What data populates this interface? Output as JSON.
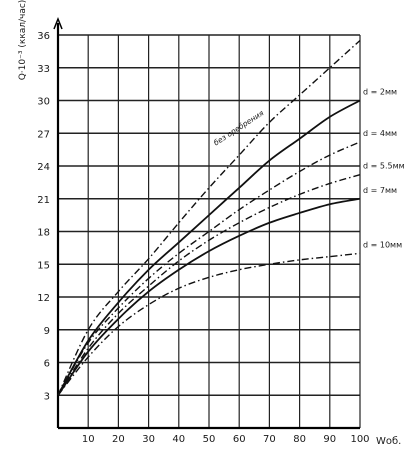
{
  "chart_data": {
    "type": "line",
    "title": "",
    "ylabel": "Q·10⁻³ (ккал/час)",
    "xlabel": "Wоб.",
    "xlim": [
      0,
      100
    ],
    "ylim": [
      0,
      36
    ],
    "x_ticks": [
      10,
      20,
      30,
      40,
      50,
      60,
      70,
      80,
      90,
      100
    ],
    "x_tick_labels": [
      "10",
      "20",
      "30",
      "40",
      "50",
      "60",
      "70",
      "80",
      "90",
      "100"
    ],
    "y_ticks": [
      3,
      6,
      9,
      12,
      15,
      18,
      21,
      24,
      27,
      30,
      33,
      36
    ],
    "y_tick_labels": [
      "3",
      "6",
      "9",
      "12",
      "15",
      "18",
      "21",
      "24",
      "27",
      "30",
      "33",
      "36"
    ],
    "grid": true,
    "legend": "inline-right",
    "annotation": "без оребрения",
    "series": [
      {
        "name": "без оребрения",
        "style": "dashdot",
        "x": [
          0,
          10,
          20,
          30,
          40,
          50,
          60,
          70,
          80,
          90,
          100
        ],
        "y": [
          3,
          9,
          12.5,
          15.5,
          18.8,
          22,
          25,
          28,
          30.5,
          33,
          35.5
        ]
      },
      {
        "name": "d = 2мм",
        "style": "solid",
        "x": [
          0,
          10,
          20,
          30,
          40,
          50,
          60,
          70,
          80,
          90,
          100
        ],
        "y": [
          3,
          8,
          11.5,
          14.5,
          17,
          19.5,
          22,
          24.5,
          26.5,
          28.5,
          30
        ]
      },
      {
        "name": "d = 4мм",
        "style": "dashdot",
        "x": [
          0,
          10,
          20,
          30,
          40,
          50,
          60,
          70,
          80,
          90,
          100
        ],
        "y": [
          3,
          7.8,
          11,
          13.7,
          16,
          18,
          20,
          21.8,
          23.5,
          25,
          26.2
        ]
      },
      {
        "name": "d = 5.5мм",
        "style": "dashdot",
        "x": [
          0,
          10,
          20,
          30,
          40,
          50,
          60,
          70,
          80,
          90,
          100
        ],
        "y": [
          3,
          7.3,
          10.5,
          13,
          15.3,
          17.2,
          18.8,
          20.2,
          21.4,
          22.4,
          23.2
        ]
      },
      {
        "name": "d = 7мм",
        "style": "solid",
        "x": [
          0,
          10,
          20,
          30,
          40,
          50,
          60,
          70,
          80,
          90,
          100
        ],
        "y": [
          3,
          7,
          10,
          12.5,
          14.5,
          16.2,
          17.6,
          18.8,
          19.7,
          20.5,
          21
        ]
      },
      {
        "name": "d = 10мм",
        "style": "dashdot",
        "x": [
          0,
          10,
          20,
          30,
          40,
          50,
          60,
          70,
          80,
          90,
          100
        ],
        "y": [
          3,
          6.5,
          9.3,
          11.3,
          12.8,
          13.8,
          14.5,
          15,
          15.4,
          15.7,
          16
        ]
      }
    ],
    "series_labels": [
      "d = 2мм",
      "d = 4мм",
      "d = 5.5мм",
      "d = 7мм",
      "d = 10мм"
    ]
  }
}
